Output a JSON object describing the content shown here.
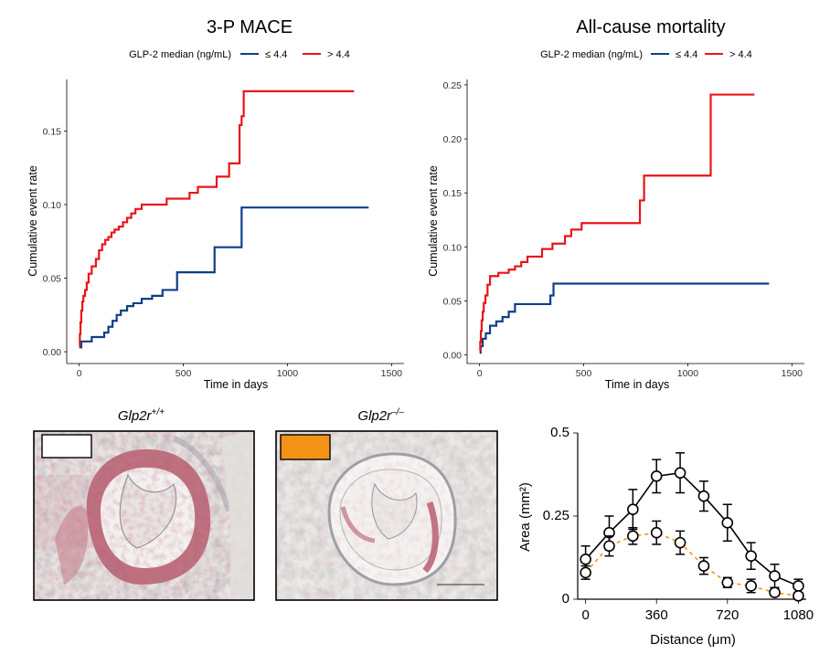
{
  "chart_data": [
    {
      "type": "line",
      "title": "3-P MACE",
      "legend_title": "GLP-2 median (ng/mL)",
      "legend_position": "top",
      "xlabel": "Time in days",
      "ylabel": "Cumulative event rate",
      "xlim": [
        -60,
        1560
      ],
      "ylim": [
        -0.008,
        0.185
      ],
      "xticks": [
        0,
        500,
        1000,
        1500
      ],
      "yticks": [
        0,
        0.05,
        0.1,
        0.15
      ],
      "yticklabels": [
        "0.00",
        "0.05",
        "0.10",
        "0.15"
      ],
      "grid": false,
      "step": true,
      "series": [
        {
          "name": "≤ 4.4",
          "color": "#0d3e8a",
          "x": [
            0,
            10,
            60,
            120,
            140,
            160,
            180,
            200,
            230,
            260,
            300,
            350,
            400,
            470,
            650,
            700,
            780,
            1390
          ],
          "y": [
            0.003,
            0.007,
            0.01,
            0.013,
            0.017,
            0.021,
            0.025,
            0.028,
            0.031,
            0.033,
            0.036,
            0.038,
            0.042,
            0.054,
            0.071,
            0.071,
            0.098,
            0.098
          ]
        },
        {
          "name": "> 4.4",
          "color": "#e8151b",
          "x": [
            0,
            3,
            6,
            10,
            15,
            20,
            28,
            36,
            45,
            60,
            80,
            95,
            110,
            125,
            140,
            155,
            170,
            190,
            210,
            230,
            250,
            270,
            300,
            350,
            420,
            530,
            570,
            660,
            720,
            770,
            780,
            790,
            1320
          ],
          "y": [
            0.004,
            0.012,
            0.02,
            0.028,
            0.034,
            0.038,
            0.042,
            0.047,
            0.053,
            0.058,
            0.063,
            0.069,
            0.073,
            0.076,
            0.078,
            0.081,
            0.083,
            0.085,
            0.088,
            0.091,
            0.094,
            0.097,
            0.1,
            0.1,
            0.104,
            0.108,
            0.112,
            0.119,
            0.128,
            0.154,
            0.16,
            0.177,
            0.177
          ]
        }
      ]
    },
    {
      "type": "line",
      "title": "All-cause mortality",
      "legend_title": "GLP-2 median (ng/mL)",
      "legend_position": "top",
      "xlabel": "Time in days",
      "ylabel": "Cumulative event rate",
      "xlim": [
        -60,
        1560
      ],
      "ylim": [
        -0.008,
        0.255
      ],
      "xticks": [
        0,
        500,
        1000,
        1500
      ],
      "yticks": [
        0,
        0.05,
        0.1,
        0.15,
        0.2,
        0.25
      ],
      "yticklabels": [
        "0.00",
        "0.05",
        "0.10",
        "0.15",
        "0.20",
        "0.25"
      ],
      "grid": false,
      "step": true,
      "series": [
        {
          "name": "≤ 4.4",
          "color": "#0d3e8a",
          "x": [
            0,
            5,
            15,
            30,
            50,
            80,
            110,
            140,
            170,
            340,
            355,
            1390
          ],
          "y": [
            0.002,
            0.008,
            0.015,
            0.02,
            0.027,
            0.031,
            0.035,
            0.04,
            0.047,
            0.055,
            0.066,
            0.066
          ]
        },
        {
          "name": "> 4.4",
          "color": "#e8151b",
          "x": [
            0,
            3,
            6,
            10,
            15,
            20,
            28,
            38,
            50,
            90,
            140,
            170,
            200,
            230,
            300,
            350,
            410,
            440,
            490,
            770,
            790,
            1110,
            1320
          ],
          "y": [
            0.004,
            0.012,
            0.022,
            0.032,
            0.04,
            0.048,
            0.055,
            0.065,
            0.073,
            0.076,
            0.079,
            0.082,
            0.086,
            0.091,
            0.098,
            0.103,
            0.11,
            0.116,
            0.122,
            0.143,
            0.166,
            0.241,
            0.241
          ]
        }
      ]
    },
    {
      "type": "line",
      "title": "",
      "xlabel": "Distance (μm)",
      "ylabel": "Area (mm²)",
      "xlim": [
        -40,
        1120
      ],
      "ylim": [
        0,
        0.5
      ],
      "xticks": [
        0,
        360,
        720,
        1080
      ],
      "yticks": [
        0,
        0.25,
        0.5
      ],
      "yticklabels": [
        "0",
        "0.25",
        "0.5"
      ],
      "grid": false,
      "series": [
        {
          "name": "Glp2r+/+",
          "color": "#000000",
          "style": "solid",
          "x": [
            0,
            120,
            240,
            360,
            480,
            600,
            720,
            840,
            960,
            1080
          ],
          "y": [
            0.12,
            0.2,
            0.27,
            0.37,
            0.38,
            0.31,
            0.23,
            0.13,
            0.07,
            0.04
          ],
          "err": [
            0.04,
            0.05,
            0.06,
            0.05,
            0.06,
            0.045,
            0.055,
            0.04,
            0.035,
            0.02
          ]
        },
        {
          "name": "Glp2r-/-",
          "color": "#f29318",
          "style": "dashed",
          "x": [
            0,
            120,
            240,
            360,
            480,
            600,
            720,
            840,
            960,
            1080
          ],
          "y": [
            0.08,
            0.16,
            0.19,
            0.2,
            0.17,
            0.1,
            0.05,
            0.04,
            0.02,
            0.01
          ],
          "err": [
            0.02,
            0.03,
            0.025,
            0.035,
            0.035,
            0.025,
            0.015,
            0.02,
            0.01,
            0.01
          ]
        }
      ]
    }
  ],
  "histology": {
    "left_label_base": "Glp2r",
    "left_label_sup": "+/+",
    "right_label_base": "Glp2r",
    "right_label_sup": "–/–",
    "left_key_color": "#ffffff",
    "right_key_color": "#f29318"
  }
}
